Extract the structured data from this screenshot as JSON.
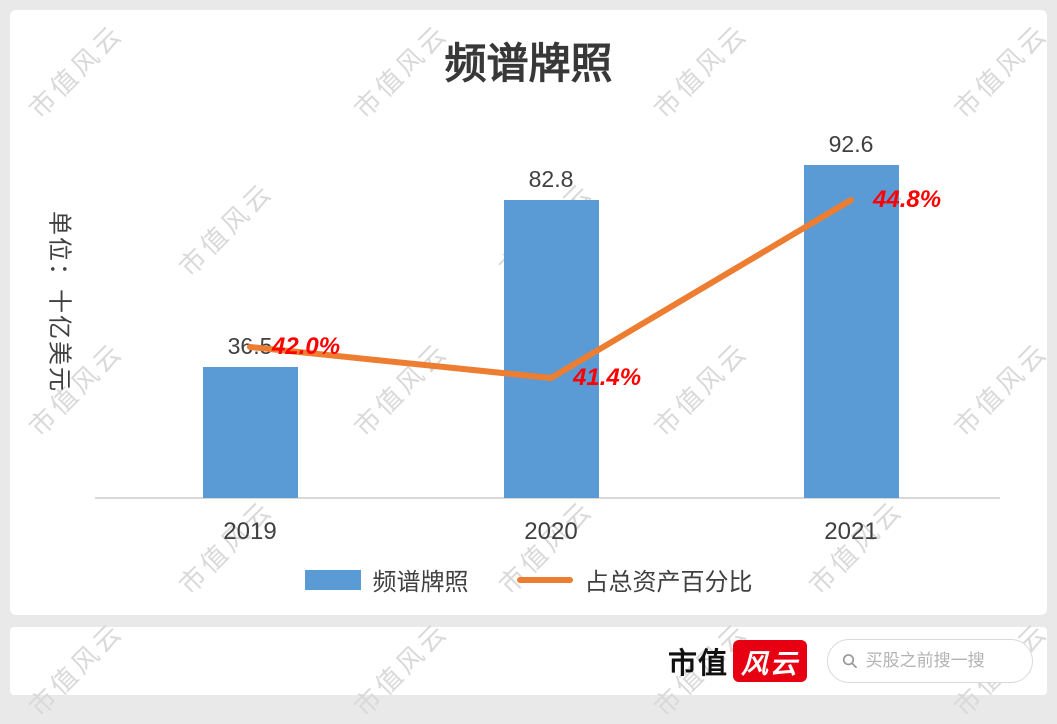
{
  "watermark": {
    "text": "市值风云"
  },
  "chart_data": {
    "type": "bar",
    "title": "频谱牌照",
    "ylabel": "单位：十亿美元",
    "categories": [
      "2019",
      "2020",
      "2021"
    ],
    "series": [
      {
        "name": "频谱牌照",
        "type": "bar",
        "color": "#5B9BD5",
        "values": [
          36.5,
          82.8,
          92.6
        ],
        "data_labels": [
          "36.5",
          "82.8",
          "92.6"
        ]
      },
      {
        "name": "占总资产百分比",
        "type": "line",
        "color": "#ED7D31",
        "unit": "%",
        "values": [
          42.0,
          41.4,
          44.8
        ],
        "data_labels": [
          "42.0%",
          "41.4%",
          "44.8%"
        ],
        "data_label_color": "#FF0000"
      }
    ],
    "legend_position": "bottom",
    "grid": false,
    "ylim": [
      0,
      100
    ]
  },
  "footer": {
    "logo_text": "市值",
    "logo_badge": "风云",
    "search_placeholder": "买股之前搜一搜"
  }
}
